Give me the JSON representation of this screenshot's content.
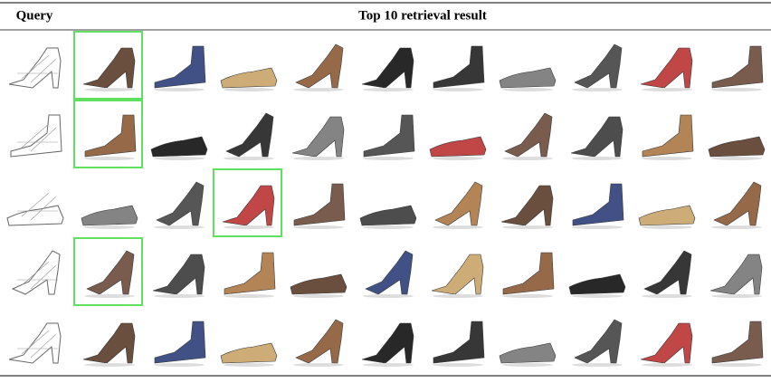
{
  "header": {
    "query": "Query",
    "results": "Top 10 retrieval result"
  },
  "rows": [
    {
      "correct_rank": 1
    },
    {
      "correct_rank": 1
    },
    {
      "correct_rank": 3
    },
    {
      "correct_rank": 1
    },
    {
      "correct_rank": null
    }
  ]
}
